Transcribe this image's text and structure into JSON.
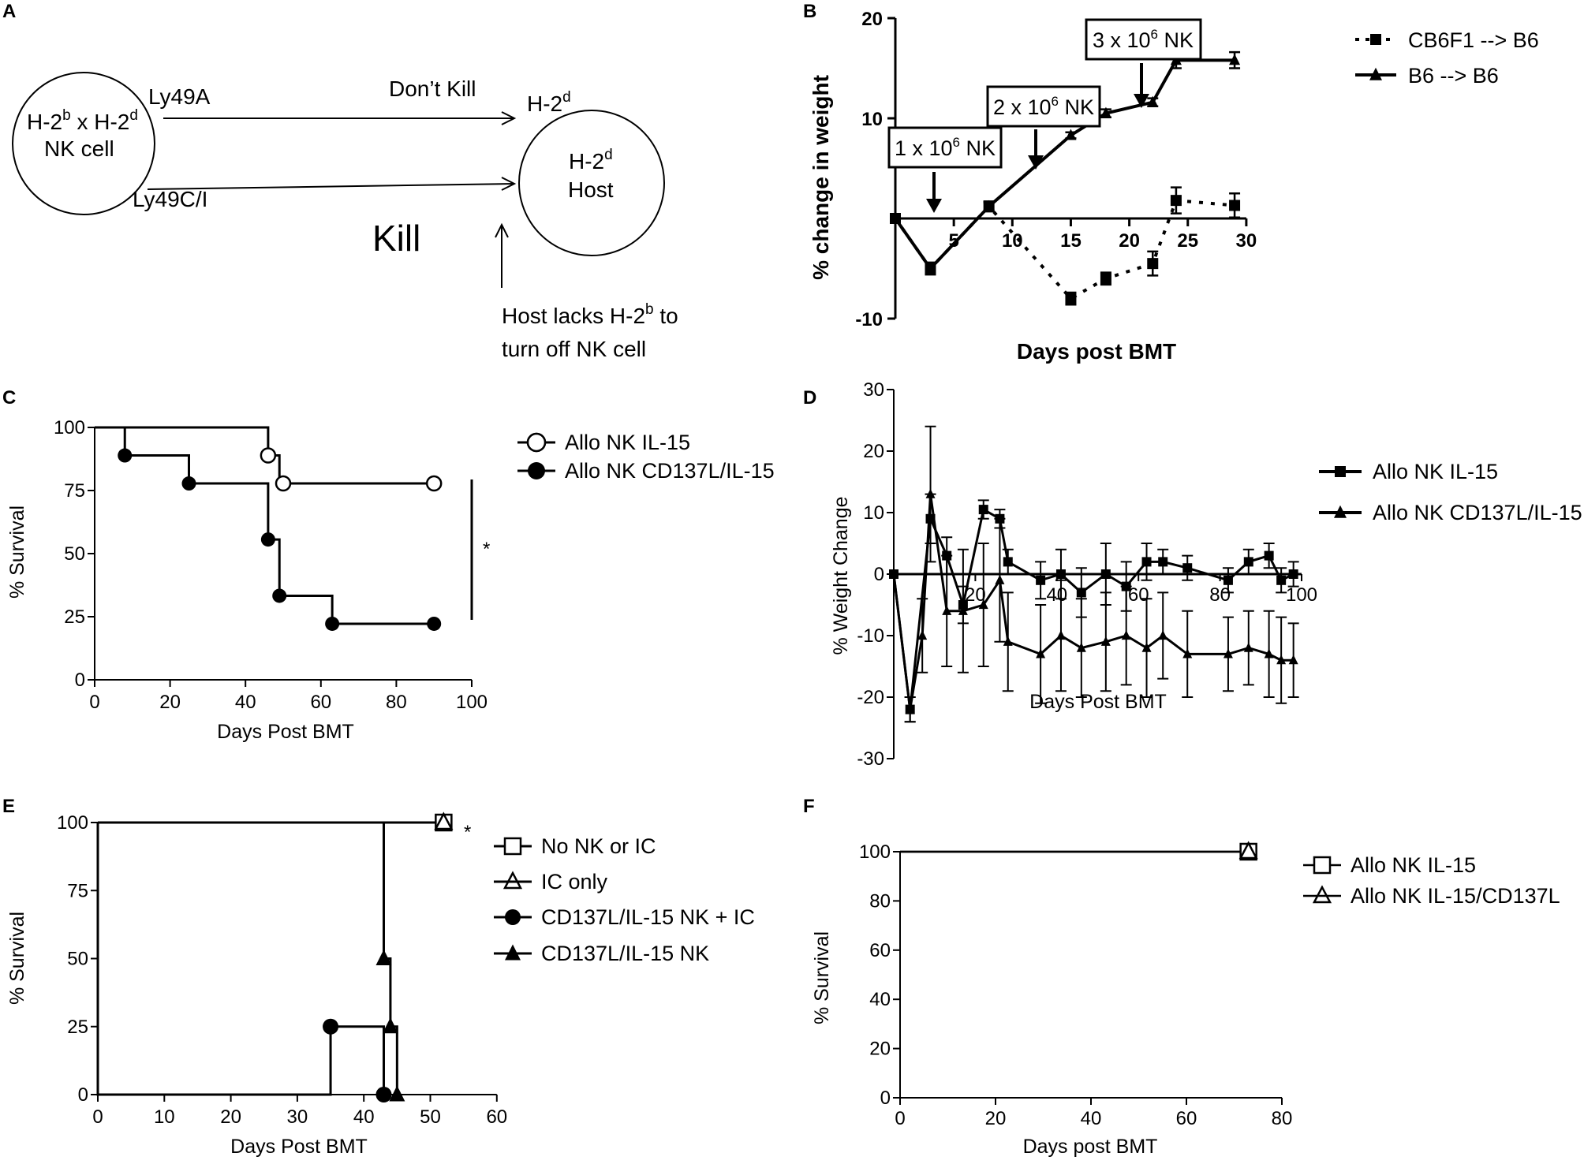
{
  "panel_labels": [
    "A",
    "B",
    "C",
    "D",
    "E",
    "F"
  ],
  "diagram": {
    "nk_cell": {
      "line1": "H-2",
      "b_sup": "b",
      "x_text": " x H-2",
      "d_sup": "d",
      "line2": "NK cell"
    },
    "host": {
      "line1": "H-2",
      "sup": "d",
      "line2": "Host"
    },
    "h2d_label": {
      "text": "H-2",
      "sup": "d"
    },
    "ly49a": "Ly49A",
    "ly49ci": "Ly49C/I",
    "dont_kill": "Don’t Kill",
    "kill": "Kill",
    "note_line1_pre": "Host lacks H-2",
    "note_sup": "b",
    "note_line1_post": " to",
    "note_line2": "turn off NK cell"
  },
  "chart_data": [
    {
      "panel": "B",
      "type": "line",
      "xlabel": "Days post BMT",
      "ylabel": "% change in weight",
      "xlim": [
        0,
        30
      ],
      "ylim": [
        -10,
        20
      ],
      "xticks": [
        "5",
        "10",
        "15",
        "20",
        "25",
        "30"
      ],
      "yticks": [
        "-10",
        "10",
        "20"
      ],
      "series": [
        {
          "name": "CB6F1 --> B6",
          "marker": "square",
          "dash": true,
          "x": [
            0,
            3,
            8,
            15,
            18,
            22,
            24,
            29
          ],
          "y": [
            0,
            -5,
            1.2,
            -8,
            -6,
            -4.5,
            1.8,
            1.3
          ],
          "err": [
            0,
            0.6,
            0.5,
            0.6,
            0.6,
            1.2,
            1.3,
            1.2
          ]
        },
        {
          "name": "B6 --> B6",
          "marker": "triangle",
          "dash": false,
          "x": [
            0,
            3,
            8,
            15,
            18,
            22,
            24,
            29
          ],
          "y": [
            0,
            -5,
            1.2,
            8.3,
            10.5,
            11.6,
            15.8,
            15.8
          ],
          "err": [
            0,
            0.5,
            0.4,
            0.3,
            0.4,
            0.4,
            0.8,
            0.8
          ]
        }
      ],
      "annotations": [
        {
          "text": "1 x 10",
          "sup": "6",
          "suffix": " NK",
          "x": 2.3
        },
        {
          "text": "2 x 10",
          "sup": "6",
          "suffix": " NK",
          "x": 9
        },
        {
          "text": "3 x 10",
          "sup": "6",
          "suffix": " NK",
          "x": 16.5
        }
      ]
    },
    {
      "panel": "C",
      "type": "line",
      "xlabel": "Days Post BMT",
      "ylabel": "% Survival",
      "xlim": [
        0,
        100
      ],
      "ylim": [
        0,
        100
      ],
      "xticks": [
        "0",
        "20",
        "40",
        "60",
        "80",
        "100"
      ],
      "yticks": [
        "0",
        "25",
        "50",
        "75",
        "100"
      ],
      "significance": "*",
      "series": [
        {
          "name": "Allo NK IL-15",
          "marker": "circle-open",
          "steps": [
            [
              0,
              100
            ],
            [
              46,
              100
            ],
            [
              46,
              88.9
            ],
            [
              49,
              88.9
            ],
            [
              49,
              77.8
            ],
            [
              90,
              77.8
            ]
          ],
          "points": [
            [
              46,
              88.9
            ],
            [
              50,
              77.8
            ],
            [
              90,
              77.8
            ]
          ]
        },
        {
          "name": "Allo NK CD137L/IL-15",
          "marker": "circle-filled",
          "steps": [
            [
              0,
              100
            ],
            [
              8,
              100
            ],
            [
              8,
              88.9
            ],
            [
              25,
              88.9
            ],
            [
              25,
              77.8
            ],
            [
              46,
              77.8
            ],
            [
              46,
              55.6
            ],
            [
              49,
              55.6
            ],
            [
              49,
              33.3
            ],
            [
              63,
              33.3
            ],
            [
              63,
              22.2
            ],
            [
              90,
              22.2
            ]
          ],
          "points": [
            [
              8,
              88.9
            ],
            [
              25,
              77.8
            ],
            [
              46,
              55.6
            ],
            [
              49,
              33.3
            ],
            [
              63,
              22.2
            ],
            [
              90,
              22.2
            ]
          ]
        }
      ]
    },
    {
      "panel": "D",
      "type": "line",
      "xlabel": "Days Post BMT",
      "ylabel": "% Weight Change",
      "xlim": [
        0,
        100
      ],
      "ylim": [
        -30,
        30
      ],
      "xticks": [
        "20",
        "40",
        "60",
        "80",
        "100"
      ],
      "yticks": [
        "-30",
        "-20",
        "-10",
        "0",
        "10",
        "20",
        "30"
      ],
      "series": [
        {
          "name": "Allo NK IL-15",
          "marker": "square",
          "x": [
            0,
            4,
            9,
            13,
            17,
            22,
            26,
            28,
            36,
            41,
            46,
            52,
            57,
            62,
            66,
            72,
            82,
            87,
            92,
            95,
            98
          ],
          "y": [
            0,
            -22,
            9,
            3,
            -5,
            10.5,
            9,
            2,
            -1,
            0,
            -3,
            0,
            -2,
            2,
            2,
            1,
            -1,
            2,
            3,
            -1,
            0
          ],
          "err": [
            0,
            2,
            4,
            3,
            3,
            1.5,
            1.5,
            2,
            3,
            4,
            4,
            5,
            4,
            3,
            2,
            2,
            2,
            2,
            2,
            2,
            2
          ]
        },
        {
          "name": "Allo NK CD137L/IL-15",
          "marker": "triangle",
          "x": [
            0,
            4,
            7,
            9,
            13,
            17,
            22,
            26,
            28,
            36,
            41,
            46,
            52,
            57,
            62,
            66,
            72,
            82,
            87,
            92,
            95,
            98
          ],
          "y": [
            0,
            -22,
            -10,
            13,
            -6,
            -6,
            -5,
            -1,
            -11,
            -13,
            -10,
            -12,
            -11,
            -10,
            -12,
            -10,
            -13,
            -13,
            -12,
            -13,
            -14,
            -14
          ],
          "err": [
            0,
            2,
            6,
            11,
            9,
            10,
            10,
            10,
            8,
            8,
            9,
            8,
            8,
            8,
            8,
            7,
            7,
            6,
            6,
            7,
            7,
            6
          ]
        }
      ]
    },
    {
      "panel": "E",
      "type": "line",
      "xlabel": "Days Post BMT",
      "ylabel": "% Survival",
      "xlim": [
        0,
        60
      ],
      "ylim": [
        0,
        100
      ],
      "xticks": [
        "0",
        "10",
        "20",
        "30",
        "40",
        "50",
        "60"
      ],
      "yticks": [
        "0",
        "25",
        "50",
        "75",
        "100"
      ],
      "significance": "*",
      "series": [
        {
          "name": "No NK or IC",
          "marker": "square-open",
          "steps": [
            [
              0,
              100
            ],
            [
              52,
              100
            ]
          ],
          "points": [
            [
              52,
              100
            ]
          ]
        },
        {
          "name": "IC only",
          "marker": "triangle-open",
          "steps": [
            [
              0,
              100
            ],
            [
              52,
              100
            ]
          ],
          "points": [
            [
              52,
              100
            ]
          ]
        },
        {
          "name": "CD137L/IL-15 NK + IC",
          "marker": "circle-filled",
          "steps": [
            [
              0,
              100
            ],
            [
              0,
              0
            ],
            [
              35,
              0
            ],
            [
              35,
              25
            ],
            [
              43,
              25
            ],
            [
              43,
              0
            ]
          ],
          "points": [
            [
              35,
              25
            ],
            [
              43,
              0
            ]
          ]
        },
        {
          "name": "CD137L/IL-15 NK",
          "marker": "triangle-filled",
          "steps": [
            [
              0,
              100
            ],
            [
              43,
              100
            ],
            [
              43,
              50
            ],
            [
              44,
              50
            ],
            [
              44,
              25
            ],
            [
              45,
              25
            ],
            [
              45,
              0
            ]
          ],
          "points": [
            [
              43,
              50
            ],
            [
              44,
              25
            ],
            [
              45,
              0
            ]
          ]
        }
      ]
    },
    {
      "panel": "F",
      "type": "line",
      "xlabel": "Days post BMT",
      "ylabel": "% Survival",
      "xlim": [
        0,
        80
      ],
      "ylim": [
        0,
        100
      ],
      "xticks": [
        "0",
        "20",
        "40",
        "60",
        "80"
      ],
      "yticks": [
        "0",
        "20",
        "40",
        "60",
        "80",
        "100"
      ],
      "series": [
        {
          "name": "Allo NK IL-15",
          "marker": "square-open",
          "steps": [
            [
              0,
              100
            ],
            [
              73,
              100
            ]
          ],
          "points": [
            [
              73,
              100
            ]
          ]
        },
        {
          "name": "Allo NK IL-15/CD137L",
          "marker": "triangle-open",
          "steps": [
            [
              0,
              100
            ],
            [
              73,
              100
            ]
          ],
          "points": [
            [
              73,
              100
            ]
          ]
        }
      ]
    }
  ]
}
